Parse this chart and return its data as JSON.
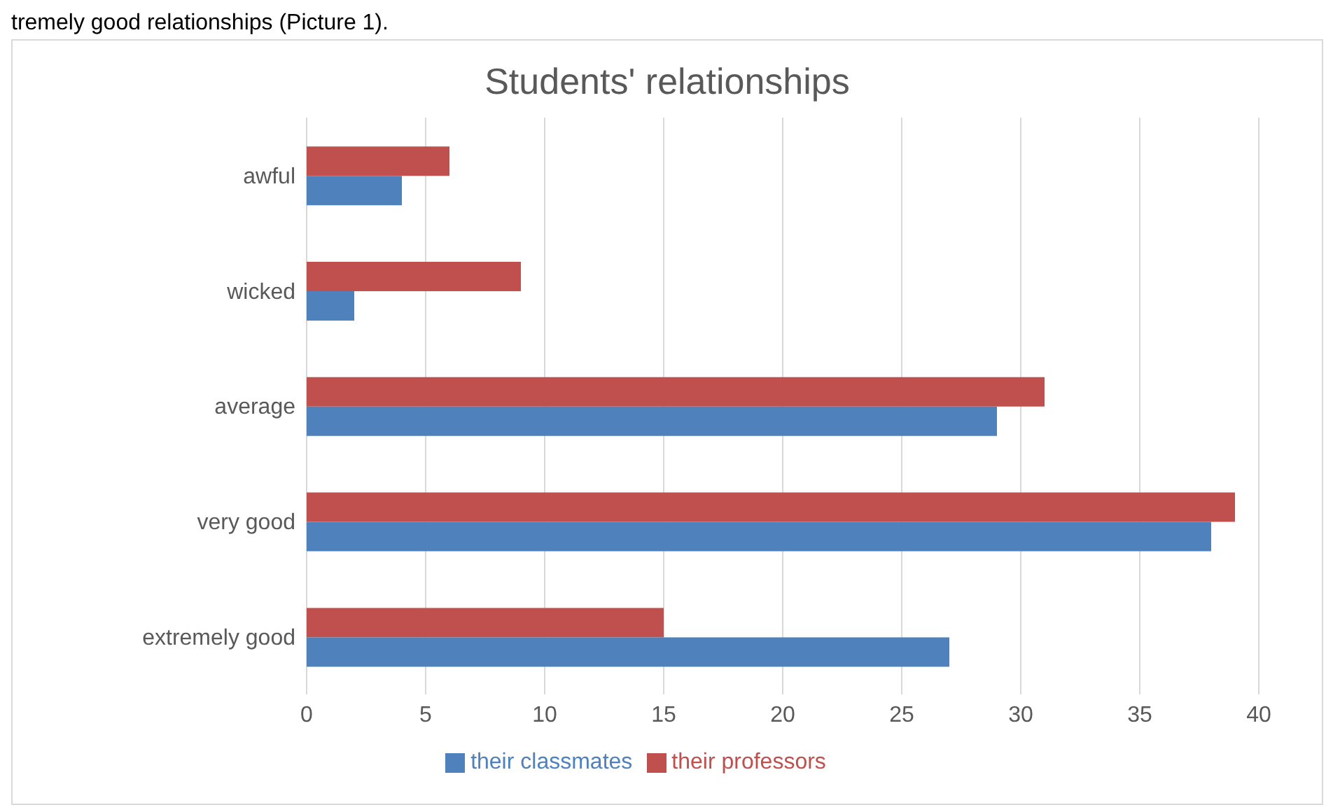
{
  "chart_data": {
    "type": "bar",
    "orientation": "horizontal",
    "title": "Students' relationships",
    "annotations": [
      "tremely good relationships (Picture 1)."
    ],
    "categories": [
      "awful",
      "wicked",
      "average",
      "very good",
      "extremely good"
    ],
    "series": [
      {
        "name": "their professors",
        "color": "#c0504d",
        "values": [
          6,
          9,
          31,
          39,
          15
        ]
      },
      {
        "name": "their classmates",
        "color": "#4f81bd",
        "values": [
          4,
          2,
          29,
          38,
          27
        ]
      }
    ],
    "xlim": [
      0,
      40
    ],
    "xticks": [
      0,
      5,
      10,
      15,
      20,
      25,
      30,
      35,
      40
    ],
    "grid": "x",
    "legend": "bottom"
  }
}
